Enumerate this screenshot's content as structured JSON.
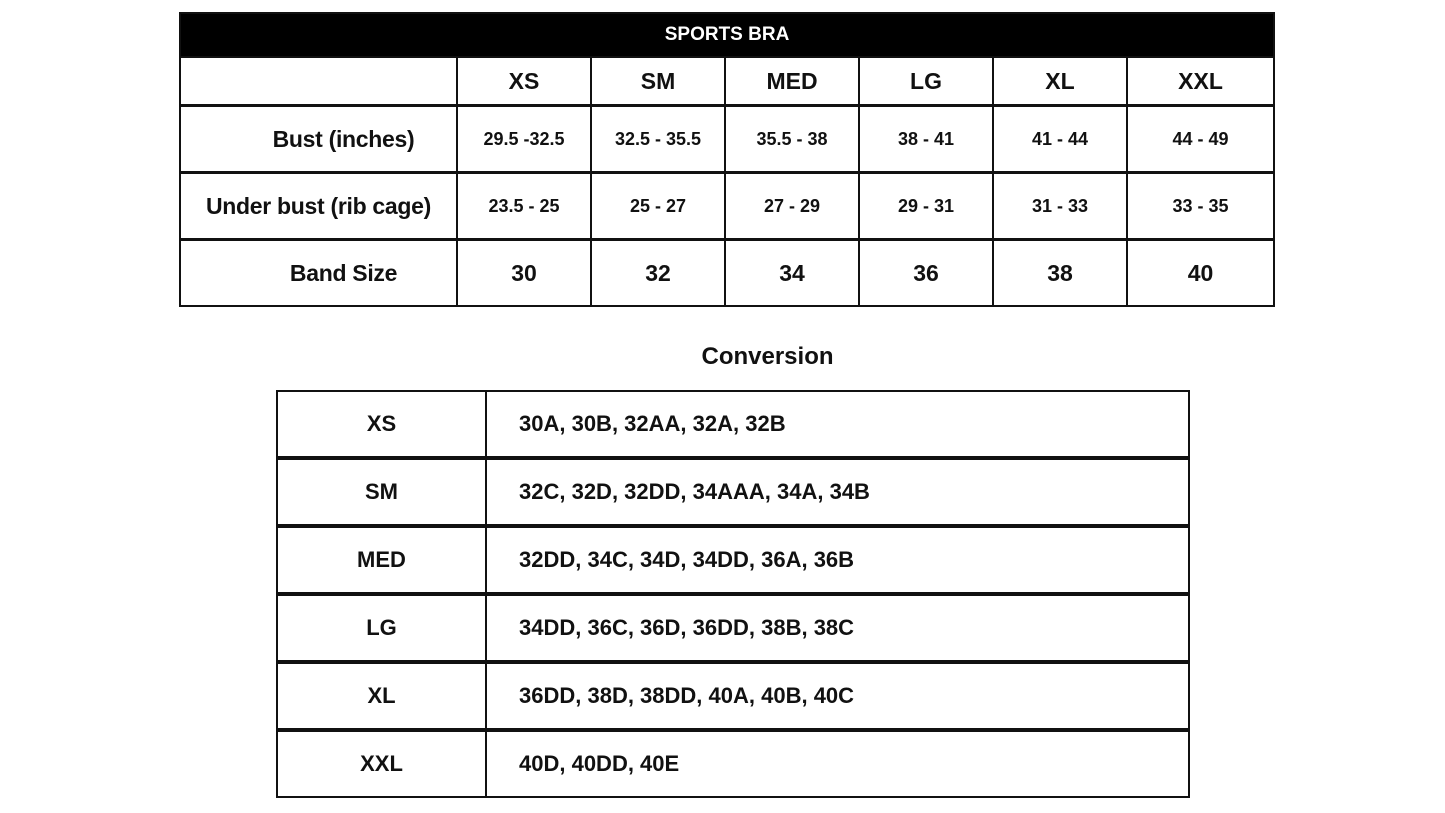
{
  "size_chart": {
    "title": "SPORTS BRA",
    "sizes": [
      "XS",
      "SM",
      "MED",
      "LG",
      "XL",
      "XXL"
    ],
    "rows": [
      {
        "label": "Bust (inches)",
        "values": [
          "29.5 -32.5",
          "32.5 - 35.5",
          "35.5 - 38",
          "38 - 41",
          "41 - 44",
          "44 - 49"
        ]
      },
      {
        "label": "Under bust (rib cage)",
        "values": [
          "23.5 - 25",
          "25 - 27",
          "27 - 29",
          "29 - 31",
          "31 - 33",
          "33 - 35"
        ]
      },
      {
        "label": "Band Size",
        "values": [
          "30",
          "32",
          "34",
          "36",
          "38",
          "40"
        ]
      }
    ]
  },
  "conversion": {
    "title": "Conversion",
    "rows": [
      {
        "size": "XS",
        "sizes": "30A, 30B, 32AA, 32A, 32B"
      },
      {
        "size": "SM",
        "sizes": "32C, 32D, 32DD, 34AAA, 34A, 34B"
      },
      {
        "size": "MED",
        "sizes": "32DD, 34C, 34D, 34DD, 36A, 36B"
      },
      {
        "size": "LG",
        "sizes": "34DD, 36C, 36D, 36DD, 38B, 38C"
      },
      {
        "size": "XL",
        "sizes": "36DD, 38D, 38DD, 40A, 40B, 40C"
      },
      {
        "size": "XXL",
        "sizes": "40D, 40DD, 40E"
      }
    ]
  }
}
